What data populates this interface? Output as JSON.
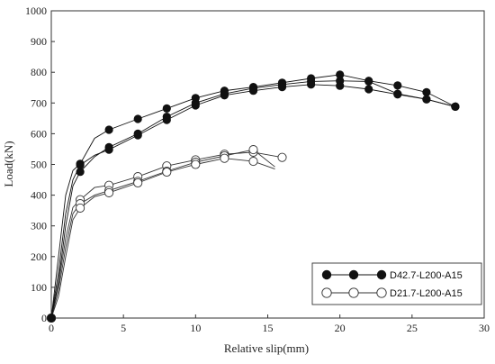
{
  "chart_data": {
    "type": "line",
    "title": "",
    "xlabel": "Relative slip(mm)",
    "ylabel": "Load(kN)",
    "xlim": [
      0,
      30
    ],
    "ylim": [
      0,
      1000
    ],
    "x_ticks": [
      0,
      5,
      10,
      15,
      20,
      25,
      30
    ],
    "y_ticks": [
      0,
      100,
      200,
      300,
      400,
      500,
      600,
      700,
      800,
      900,
      1000
    ],
    "grid": false,
    "legend_position": "bottom-right",
    "series": [
      {
        "name": "D42.7-L200-A15",
        "marker": "filled-circle",
        "color": "#111111",
        "curves": [
          {
            "x": [
              0,
              0.5,
              1,
              1.5,
              2,
              3,
              4,
              6,
              8,
              10,
              12,
              14,
              16,
              18,
              20,
              22,
              24,
              26,
              28
            ],
            "y": [
              0,
              200,
              400,
              480,
              502,
              585,
              613,
              648,
              682,
              716,
              740,
              752,
              766,
              780,
              792,
              772,
              757,
              735,
              688
            ]
          },
          {
            "x": [
              0,
              0.5,
              1,
              1.5,
              2,
              3,
              4,
              6,
              8,
              10,
              12,
              14,
              16,
              18,
              20,
              22,
              24,
              26,
              28
            ],
            "y": [
              0,
              120,
              300,
              430,
              476,
              525,
              556,
              600,
              655,
              700,
              730,
              748,
              760,
              770,
              772,
              770,
              730,
              712,
              688
            ]
          },
          {
            "x": [
              0,
              0.5,
              1,
              1.5,
              2,
              3,
              4,
              6,
              8,
              10,
              12,
              14,
              16,
              18,
              20,
              22,
              24,
              26,
              28
            ],
            "y": [
              0,
              150,
              340,
              450,
              498,
              530,
              548,
              595,
              645,
              692,
              725,
              740,
              752,
              760,
              756,
              745,
              728,
              712,
              688
            ]
          }
        ]
      },
      {
        "name": "D21.7-L200-A15",
        "marker": "open-circle",
        "color": "#333333",
        "curves": [
          {
            "x": [
              0,
              0.5,
              1,
              1.5,
              2,
              3,
              4,
              6,
              8,
              10,
              12,
              14,
              16
            ],
            "y": [
              0,
              110,
              260,
              360,
              385,
              425,
              432,
              460,
              495,
              515,
              533,
              540,
              523
            ]
          },
          {
            "x": [
              0,
              0.5,
              1,
              1.5,
              2,
              3,
              4,
              6,
              8,
              10,
              12,
              14,
              15.5
            ],
            "y": [
              0,
              90,
              230,
              340,
              372,
              400,
              415,
              445,
              478,
              507,
              528,
              548,
              492
            ]
          },
          {
            "x": [
              0,
              0.5,
              1,
              1.5,
              2,
              3,
              4,
              6,
              8,
              10,
              12,
              14,
              15.5
            ],
            "y": [
              0,
              70,
              200,
              320,
              358,
              395,
              408,
              440,
              475,
              500,
              520,
              510,
              485
            ]
          }
        ]
      }
    ]
  }
}
